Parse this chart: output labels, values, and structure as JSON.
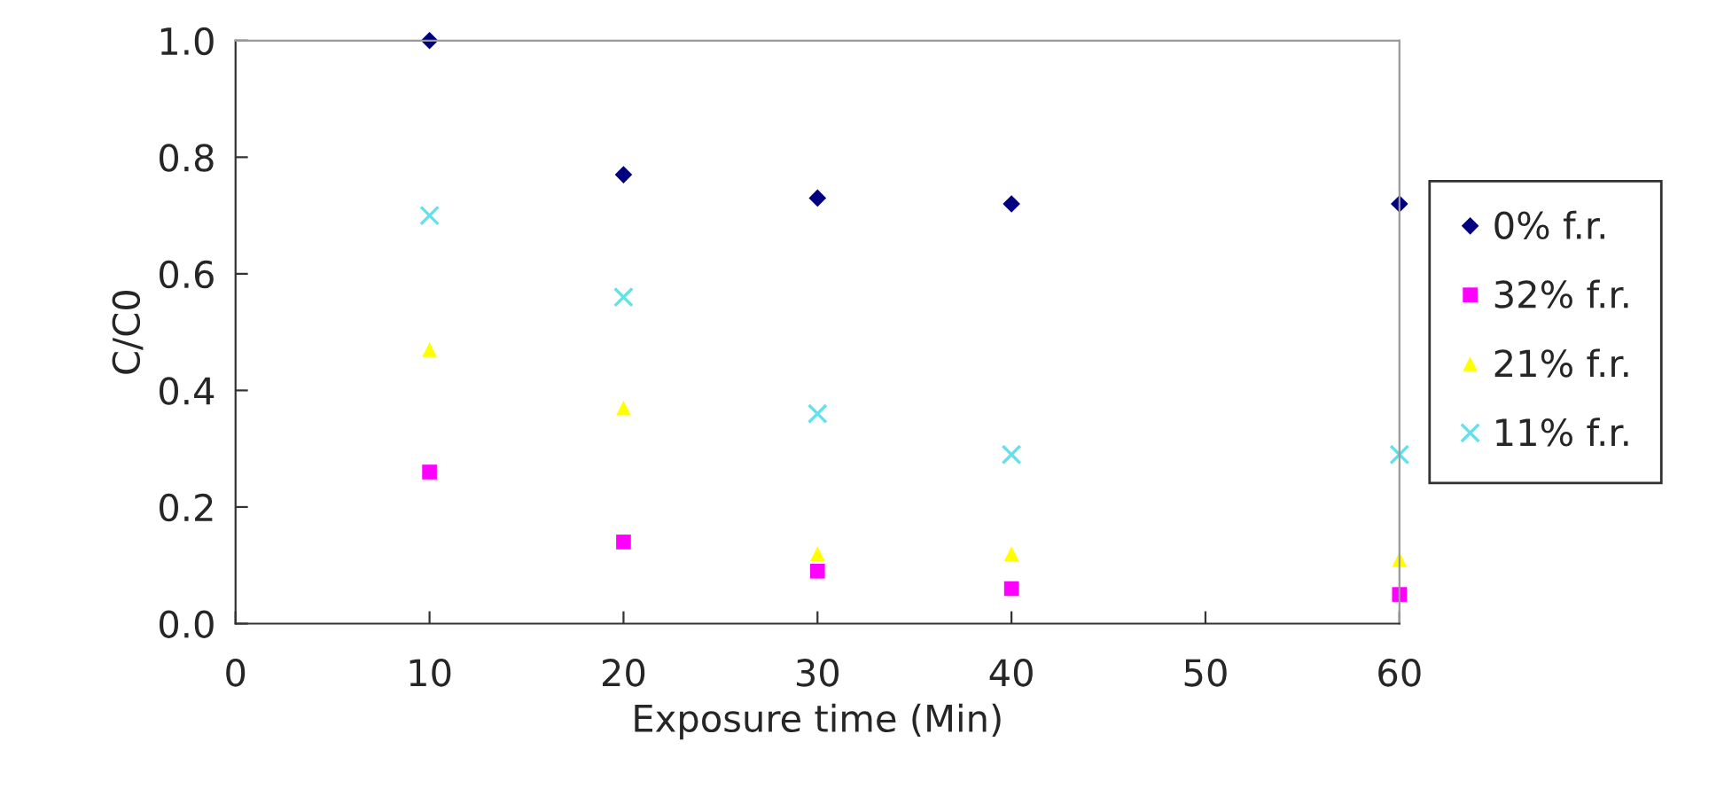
{
  "chart_data": {
    "type": "scatter",
    "xlabel": "Exposure time (Min)",
    "ylabel": "C/C0",
    "x": [
      10,
      20,
      30,
      40,
      60
    ],
    "series": [
      {
        "name": "0% f.r.",
        "color": "#000080",
        "marker": "diamond",
        "values": [
          1.0,
          0.77,
          0.73,
          0.72,
          0.72
        ]
      },
      {
        "name": "32% f.r.",
        "color": "#ff00ff",
        "marker": "square",
        "values": [
          0.26,
          0.14,
          0.09,
          0.06,
          0.05
        ]
      },
      {
        "name": "21% f.r.",
        "color": "#ffff00",
        "marker": "triangle",
        "values": [
          0.47,
          0.37,
          0.12,
          0.12,
          0.11
        ]
      },
      {
        "name": "11% f.r.",
        "color": "#66e0e8",
        "marker": "cross",
        "values": [
          0.7,
          0.56,
          0.36,
          0.29,
          0.29
        ]
      }
    ],
    "xlim": [
      0,
      60
    ],
    "xticks": [
      0,
      10,
      20,
      30,
      40,
      50,
      60
    ],
    "ylim": [
      0,
      1.0
    ],
    "yticks": [
      {
        "value": 0,
        "label": "0.0"
      },
      {
        "value": 0.2,
        "label": "0.2"
      },
      {
        "value": 0.4,
        "label": "0.4"
      },
      {
        "value": 0.6,
        "label": "0.6"
      },
      {
        "value": 0.8,
        "label": "0.8"
      },
      {
        "value": 1.0,
        "label": "1.0"
      }
    ],
    "grid": false,
    "legend": "right"
  }
}
